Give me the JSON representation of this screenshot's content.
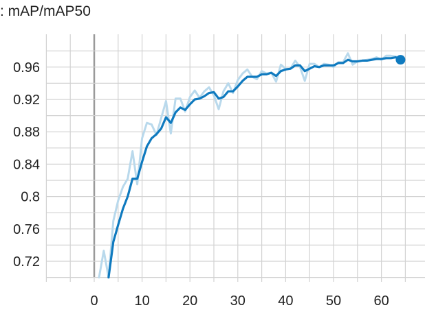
{
  "title": ": mAP/mAP50",
  "colors": {
    "smoothed": "#0f7abf",
    "raw": "#b9d9ec",
    "grid": "#d2d2d2",
    "zero_line": "#9a9a9a",
    "text": "#212121"
  },
  "chart_data": {
    "type": "line",
    "title": ": mAP/mAP50",
    "xlabel": "",
    "ylabel": "",
    "xlim": [
      -10,
      68
    ],
    "ylim": [
      0.7,
      0.99
    ],
    "grid": true,
    "x_ticks": [
      "0",
      "10",
      "20",
      "30",
      "40",
      "50",
      "60"
    ],
    "y_ticks": [
      "0.72",
      "0.76",
      "0.8",
      "0.84",
      "0.88",
      "0.92",
      "0.96"
    ],
    "series": [
      {
        "role": "raw",
        "x": [
          1,
          2,
          3,
          4,
          5,
          6,
          7,
          8,
          9,
          10,
          11,
          12,
          13,
          14,
          15,
          16,
          17,
          18,
          19,
          20,
          21,
          22,
          23,
          24,
          25,
          26,
          27,
          28,
          29,
          30,
          31,
          32,
          33,
          34,
          35,
          36,
          37,
          38,
          39,
          40,
          41,
          42,
          43,
          44,
          45,
          46,
          47,
          48,
          49,
          50,
          51,
          52,
          53,
          54,
          55,
          56,
          57,
          58,
          59,
          60,
          61,
          62,
          63,
          64
        ],
        "values": [
          0.7,
          0.733,
          0.7,
          0.77,
          0.795,
          0.812,
          0.822,
          0.856,
          0.815,
          0.872,
          0.891,
          0.889,
          0.876,
          0.897,
          0.918,
          0.878,
          0.921,
          0.921,
          0.905,
          0.923,
          0.931,
          0.922,
          0.93,
          0.935,
          0.925,
          0.908,
          0.93,
          0.94,
          0.928,
          0.944,
          0.952,
          0.957,
          0.948,
          0.945,
          0.955,
          0.952,
          0.953,
          0.942,
          0.963,
          0.958,
          0.958,
          0.968,
          0.96,
          0.943,
          0.964,
          0.964,
          0.96,
          0.964,
          0.963,
          0.96,
          0.966,
          0.966,
          0.977,
          0.963,
          0.967,
          0.968,
          0.969,
          0.97,
          0.972,
          0.969,
          0.974,
          0.974,
          0.973,
          0.97
        ]
      },
      {
        "role": "smoothed",
        "x": [
          3,
          4,
          5,
          6,
          7,
          8,
          9,
          10,
          11,
          12,
          13,
          14,
          15,
          16,
          17,
          18,
          19,
          20,
          21,
          22,
          23,
          24,
          25,
          26,
          27,
          28,
          29,
          30,
          31,
          32,
          33,
          34,
          35,
          36,
          37,
          38,
          39,
          40,
          41,
          42,
          43,
          44,
          45,
          46,
          47,
          48,
          49,
          50,
          51,
          52,
          53,
          54,
          55,
          56,
          57,
          58,
          59,
          60,
          61,
          62,
          63,
          64
        ],
        "values": [
          0.7,
          0.744,
          0.765,
          0.785,
          0.8,
          0.822,
          0.822,
          0.843,
          0.862,
          0.872,
          0.877,
          0.884,
          0.898,
          0.891,
          0.904,
          0.91,
          0.907,
          0.914,
          0.92,
          0.921,
          0.924,
          0.928,
          0.929,
          0.921,
          0.923,
          0.93,
          0.93,
          0.936,
          0.943,
          0.948,
          0.948,
          0.948,
          0.951,
          0.951,
          0.953,
          0.949,
          0.955,
          0.957,
          0.958,
          0.962,
          0.962,
          0.955,
          0.958,
          0.961,
          0.96,
          0.962,
          0.962,
          0.962,
          0.965,
          0.965,
          0.969,
          0.967,
          0.967,
          0.968,
          0.968,
          0.969,
          0.97,
          0.97,
          0.971,
          0.971,
          0.972,
          0.969
        ]
      }
    ]
  }
}
